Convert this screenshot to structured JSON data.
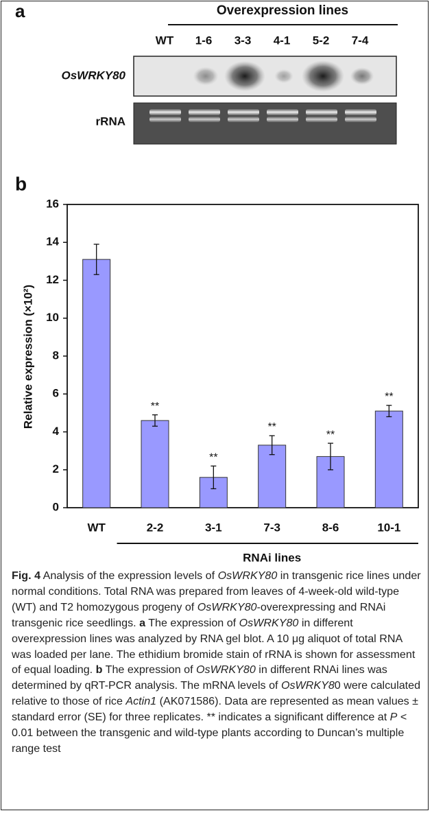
{
  "panel_a": {
    "label": "a",
    "group_label": "Overexpression lines",
    "lanes": [
      "WT",
      "1-6",
      "3-3",
      "4-1",
      "5-2",
      "7-4"
    ],
    "rows": [
      "OsWRKY80",
      "rRNA"
    ]
  },
  "chart_data": {
    "type": "bar",
    "panel_label": "b",
    "y_label": "Relative expression (×10²)",
    "categories": [
      "WT",
      "2-2",
      "3-1",
      "7-3",
      "8-6",
      "10-1"
    ],
    "values": [
      13.1,
      4.6,
      1.6,
      3.3,
      2.7,
      5.1
    ],
    "errors": [
      0.8,
      0.3,
      0.6,
      0.5,
      0.7,
      0.3
    ],
    "annotations": [
      null,
      "**",
      "**",
      "**",
      "**",
      "**"
    ],
    "group_label": "RNAi lines",
    "color": "#9999ff",
    "ylim": [
      0,
      16
    ],
    "yticks": [
      0,
      2,
      4,
      6,
      8,
      10,
      12,
      14,
      16
    ]
  },
  "caption": [
    {
      "text": "Fig. 4",
      "bold": true
    },
    {
      "text": " Analysis of the expression levels of "
    },
    {
      "text": "OsWRKY80",
      "italic": true
    },
    {
      "text": " in transgenic rice lines under normal conditions. Total RNA was prepared from leaves of 4-week-old wild-type (WT) and T2 homozygous progeny of "
    },
    {
      "text": "OsWRKY80",
      "italic": true
    },
    {
      "text": "-overexpressing and RNAi transgenic rice seedlings. "
    },
    {
      "text": "a",
      "bold": true
    },
    {
      "text": " The expression of "
    },
    {
      "text": "OsWRKY80",
      "italic": true
    },
    {
      "text": " in different overexpression lines was analyzed by RNA gel blot. A 10 μg aliquot of total RNA was loaded per lane. The ethidium bromide stain of rRNA is shown for assessment of equal loading. "
    },
    {
      "text": "b",
      "bold": true
    },
    {
      "text": " The expression of "
    },
    {
      "text": "OsWRKY80",
      "italic": true
    },
    {
      "text": " in different RNAi lines was determined by qRT-PCR analysis. The mRNA levels of "
    },
    {
      "text": "OsWRKY8",
      "italic": true
    },
    {
      "text": "0 were calculated relative to those of rice "
    },
    {
      "text": "Actin1",
      "italic": true
    },
    {
      "text": " (AK071586). Data are represented as mean values ± standard error (SE) for three replicates. ** indicates a significant difference at "
    },
    {
      "text": "P",
      "italic": true
    },
    {
      "text": " < 0.01 between the transgenic and wild-type plants according to Duncan’s multiple range test"
    }
  ]
}
